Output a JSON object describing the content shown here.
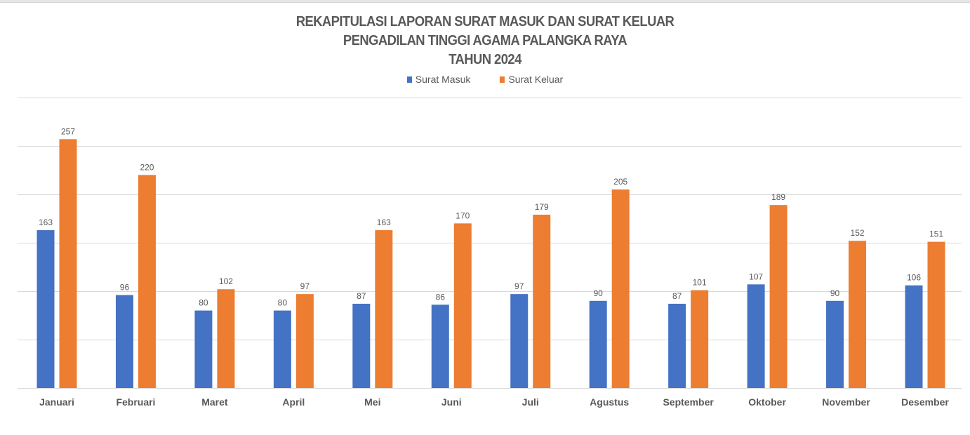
{
  "chart_data": {
    "type": "bar",
    "title": [
      "REKAPITULASI LAPORAN SURAT MASUK DAN SURAT KELUAR",
      "PENGADILAN TINGGI AGAMA PALANGKA RAYA",
      "TAHUN 2024"
    ],
    "categories": [
      "Januari",
      "Februari",
      "Maret",
      "April",
      "Mei",
      "Juni",
      "Juli",
      "Agustus",
      "September",
      "Oktober",
      "November",
      "Desember"
    ],
    "series": [
      {
        "name": "Surat Masuk",
        "color": "#4472C4",
        "values": [
          163,
          96,
          80,
          80,
          87,
          86,
          97,
          90,
          87,
          107,
          90,
          106
        ]
      },
      {
        "name": "Surat Keluar",
        "color": "#ED7D31",
        "values": [
          257,
          220,
          102,
          97,
          163,
          170,
          179,
          205,
          101,
          189,
          152,
          151
        ]
      }
    ],
    "xlabel": "",
    "ylabel": "",
    "ylim": [
      0,
      300
    ],
    "ytick_step": 50,
    "grid": true,
    "legend": "top-center"
  }
}
